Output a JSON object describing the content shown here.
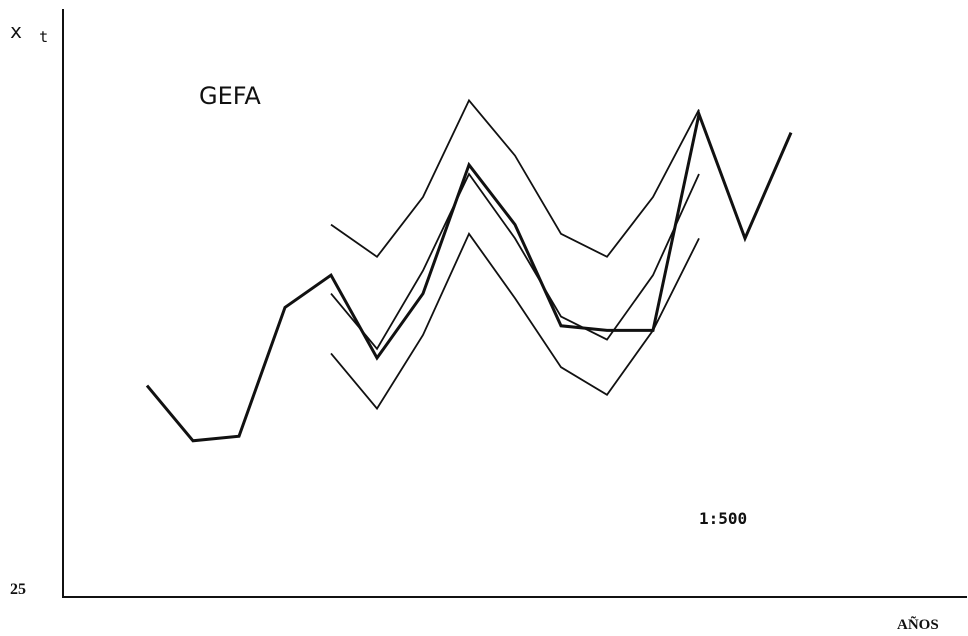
{
  "chart_data": {
    "type": "line",
    "title": "GEFA",
    "annotation": "1:500",
    "ylabel_main": "x",
    "ylabel_sub": "t",
    "xlabel": "AÑOS",
    "y_tick_label": "25",
    "ylim": [
      0,
      100
    ],
    "grid": false,
    "legend": "none",
    "series": [
      {
        "style": "thick",
        "points": [
          {
            "x": 1,
            "y": 29
          },
          {
            "x": 2,
            "y": 17
          },
          {
            "x": 3,
            "y": 18
          },
          {
            "x": 4,
            "y": 46
          },
          {
            "x": 5,
            "y": 53
          },
          {
            "x": 6,
            "y": 35
          },
          {
            "x": 7,
            "y": 49
          },
          {
            "x": 8,
            "y": 77
          },
          {
            "x": 9,
            "y": 64
          },
          {
            "x": 10,
            "y": 42
          },
          {
            "x": 11,
            "y": 41
          },
          {
            "x": 12,
            "y": 41
          },
          {
            "x": 13,
            "y": 88
          },
          {
            "x": 14,
            "y": 61
          },
          {
            "x": 15,
            "y": 84
          }
        ]
      },
      {
        "style": "thin",
        "points": [
          {
            "x": 5,
            "y": 64
          },
          {
            "x": 6,
            "y": 57
          },
          {
            "x": 7,
            "y": 70
          },
          {
            "x": 8,
            "y": 91
          },
          {
            "x": 9,
            "y": 79
          },
          {
            "x": 10,
            "y": 62
          },
          {
            "x": 11,
            "y": 57
          },
          {
            "x": 12,
            "y": 70
          },
          {
            "x": 13,
            "y": 89
          }
        ]
      },
      {
        "style": "thin",
        "points": [
          {
            "x": 5,
            "y": 49
          },
          {
            "x": 6,
            "y": 37
          },
          {
            "x": 7,
            "y": 54
          },
          {
            "x": 8,
            "y": 75
          },
          {
            "x": 9,
            "y": 61
          },
          {
            "x": 10,
            "y": 44
          },
          {
            "x": 11,
            "y": 39
          },
          {
            "x": 12,
            "y": 53
          },
          {
            "x": 13,
            "y": 75
          }
        ]
      },
      {
        "style": "thin",
        "points": [
          {
            "x": 5,
            "y": 36
          },
          {
            "x": 6,
            "y": 24
          },
          {
            "x": 7,
            "y": 40
          },
          {
            "x": 8,
            "y": 62
          },
          {
            "x": 9,
            "y": 48
          },
          {
            "x": 10,
            "y": 33
          },
          {
            "x": 11,
            "y": 27
          },
          {
            "x": 12,
            "y": 41
          },
          {
            "x": 13,
            "y": 61
          }
        ]
      }
    ]
  }
}
